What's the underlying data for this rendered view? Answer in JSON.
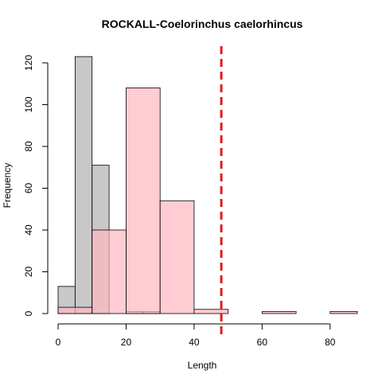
{
  "chart_data": {
    "type": "bar",
    "title": "ROCKALL-Coelorinchus caelorhincus",
    "xlabel": "Length",
    "ylabel": "Frequency",
    "xlim": [
      0,
      88
    ],
    "ylim": [
      0,
      125
    ],
    "x_ticks": [
      0,
      20,
      40,
      60,
      80
    ],
    "y_ticks": [
      0,
      20,
      40,
      60,
      80,
      100,
      120
    ],
    "series": [
      {
        "color": "#bebebe",
        "opacity": 0.85,
        "bins": [
          {
            "x0": 0,
            "x1": 5,
            "count": 13
          },
          {
            "x0": 5,
            "x1": 10,
            "count": 123
          },
          {
            "x0": 10,
            "x1": 15,
            "count": 71
          },
          {
            "x0": 15,
            "x1": 20,
            "count": 0
          },
          {
            "x0": 20,
            "x1": 25,
            "count": 1
          },
          {
            "x0": 25,
            "x1": 30,
            "count": 1
          }
        ]
      },
      {
        "color": "#ffb6c1",
        "opacity": 0.7,
        "bins": [
          {
            "x0": 0,
            "x1": 10,
            "count": 3
          },
          {
            "x0": 10,
            "x1": 20,
            "count": 40
          },
          {
            "x0": 20,
            "x1": 30,
            "count": 108
          },
          {
            "x0": 30,
            "x1": 40,
            "count": 54
          },
          {
            "x0": 40,
            "x1": 50,
            "count": 2
          },
          {
            "x0": 50,
            "x1": 60,
            "count": 0
          },
          {
            "x0": 60,
            "x1": 70,
            "count": 1
          },
          {
            "x0": 70,
            "x1": 80,
            "count": 0
          },
          {
            "x0": 80,
            "x1": 90,
            "count": 1
          }
        ]
      }
    ],
    "reference_line": {
      "x": 48,
      "color": "#e31a1c",
      "style": "dashed"
    }
  }
}
